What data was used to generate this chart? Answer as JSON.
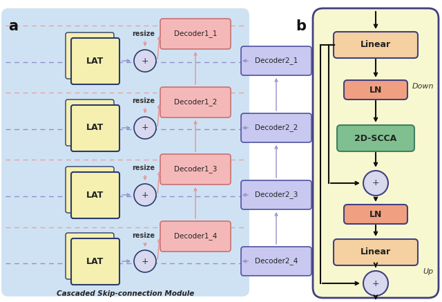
{
  "fig_width": 6.4,
  "fig_height": 4.37,
  "dpi": 100,
  "bg": "#ffffff",
  "panel_a_bg": "#cfe2f3",
  "lat_face": "#f5f0b0",
  "lat_edge": "#2a3a6a",
  "dec1_face": "#f5b8b8",
  "dec1_edge": "#c87070",
  "dec2_face": "#c8c8f0",
  "dec2_edge": "#5050a0",
  "pb_face": "#f8f8d0",
  "pb_edge": "#404080",
  "linear_face": "#f5d0a0",
  "linear_edge": "#8060a0",
  "ln_face": "#f0a080",
  "ln_edge": "#8060a0",
  "scca_face": "#80c090",
  "scca_edge": "#408060",
  "circle_face": "#d8d8ee",
  "circle_edge": "#5060a0",
  "arr_blue": "#9090cc",
  "arr_pink": "#e89090",
  "arr_dark": "#101010",
  "dash_blue": "#9090cc",
  "dash_pink": "#e8a0a0",
  "caption": "Cascaded Skip-connection Module",
  "down_label": "Down",
  "up_label": "Up"
}
